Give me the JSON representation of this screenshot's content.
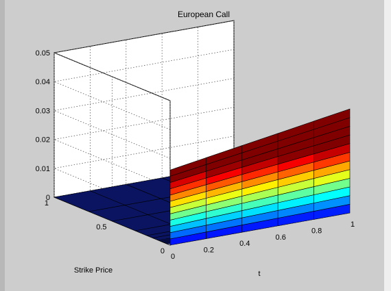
{
  "chart_data": {
    "type": "surface",
    "title": "European Call",
    "xlabel": "t",
    "ylabel": "Strike Price",
    "zlabel": "",
    "xlim": [
      0,
      1
    ],
    "ylim": [
      0,
      1
    ],
    "zlim": [
      0,
      0.05
    ],
    "xticks": [
      "0",
      "0.2",
      "0.4",
      "0.6",
      "0.8",
      "1"
    ],
    "yticks": [
      "0",
      "0.5",
      "1"
    ],
    "zticks": [
      "0",
      "0.01",
      "0.02",
      "0.03",
      "0.04",
      "0.05"
    ],
    "grid": true,
    "colormap": "jet",
    "t_values": [
      0,
      0.2,
      0.4,
      0.6,
      0.8,
      1.0
    ],
    "strike_values": [
      0,
      0.02,
      0.04,
      0.06,
      0.08,
      0.1,
      0.15,
      0.2,
      0.3,
      0.5,
      0.7,
      1.0
    ],
    "call_value_at_strike_zero": [
      0.026,
      0.028,
      0.03,
      0.032,
      0.034,
      0.036
    ],
    "call_value_for_positive_strike": 0
  }
}
